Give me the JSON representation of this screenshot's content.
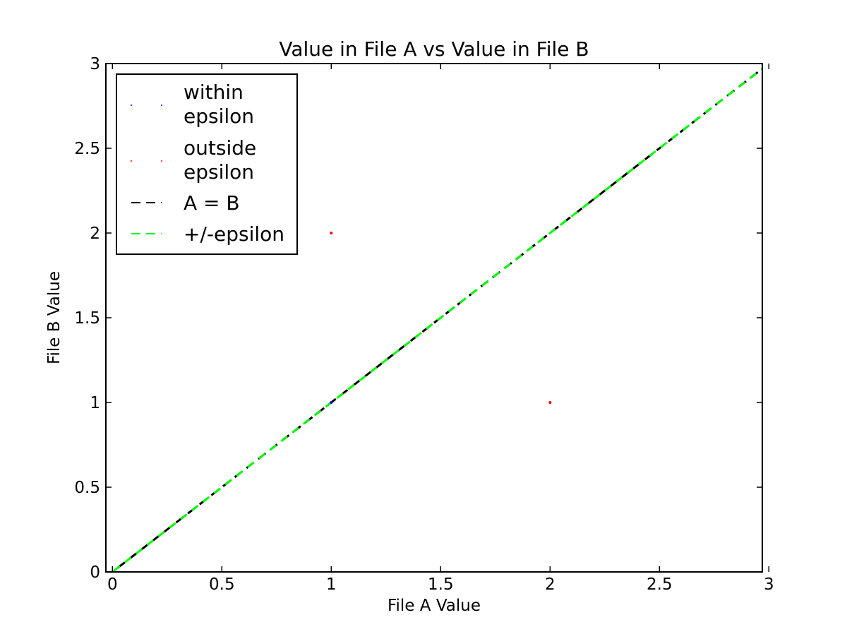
{
  "chart_data": {
    "type": "scatter",
    "title": "Value in File A vs Value in File B",
    "xlabel": "File A Value",
    "ylabel": "File B Value",
    "xlim": [
      -0.03,
      2.97
    ],
    "ylim": [
      0,
      3
    ],
    "grid": false,
    "legend_placement": "upper-left",
    "x_ticks": [
      {
        "value": 0,
        "label": "0"
      },
      {
        "value": 0.5,
        "label": "0.5"
      },
      {
        "value": 1,
        "label": "1"
      },
      {
        "value": 1.5,
        "label": "1.5"
      },
      {
        "value": 2,
        "label": "2"
      },
      {
        "value": 2.5,
        "label": "2.5"
      },
      {
        "value": 3,
        "label": "3"
      }
    ],
    "y_ticks": [
      {
        "value": 0,
        "label": "0"
      },
      {
        "value": 0.5,
        "label": "0.5"
      },
      {
        "value": 1,
        "label": "1"
      },
      {
        "value": 1.5,
        "label": "1.5"
      },
      {
        "value": 2,
        "label": "2"
      },
      {
        "value": 2.5,
        "label": "2.5"
      },
      {
        "value": 3,
        "label": "3"
      }
    ],
    "series": [
      {
        "name": "within epsilon",
        "name_lines": [
          "within",
          "epsilon"
        ],
        "kind": "points",
        "color": "#0000ff",
        "points": [
          {
            "x": 1,
            "y": 1
          }
        ]
      },
      {
        "name": "outside epsilon",
        "name_lines": [
          "outside",
          "epsilon"
        ],
        "kind": "points",
        "color": "#ff0000",
        "points": [
          {
            "x": 1,
            "y": 2
          },
          {
            "x": 2,
            "y": 1
          }
        ]
      },
      {
        "name": "A = B",
        "name_lines": [
          "A = B"
        ],
        "kind": "dashed-line",
        "color": "#000000",
        "points": [
          {
            "x": -0.03,
            "y": -0.03
          },
          {
            "x": 2.97,
            "y": 2.97
          }
        ]
      },
      {
        "name": "+/-epsilon",
        "name_lines": [
          "+/-epsilon"
        ],
        "kind": "dashed-line",
        "color": "#00ff00",
        "points": [
          {
            "x": -0.03,
            "y": -0.03
          },
          {
            "x": 2.97,
            "y": 2.97
          }
        ]
      }
    ]
  }
}
